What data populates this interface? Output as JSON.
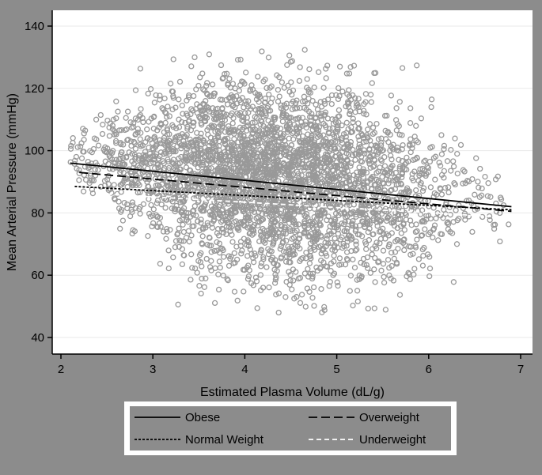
{
  "chart_data": {
    "type": "scatter",
    "xlabel": "Estimated Plasma Volume (dL/g)",
    "ylabel": "Mean Arterial Pressure (mmHg)",
    "xlim": [
      2,
      7
    ],
    "ylim": [
      40,
      140
    ],
    "x_ticks": [
      2,
      3,
      4,
      5,
      6,
      7
    ],
    "y_ticks": [
      40,
      60,
      80,
      100,
      120,
      140
    ],
    "grid": true,
    "legend_position": "bottom",
    "scatter": {
      "color": "#999999",
      "marker": "hollow-circle",
      "center_x": 4.3,
      "center_y": 92,
      "x_range": [
        2.1,
        6.9
      ],
      "y_range": [
        48,
        133
      ]
    },
    "series": [
      {
        "name": "Obese",
        "style": "solid",
        "color": "#000000",
        "x": [
          2.1,
          6.9
        ],
        "y": [
          96,
          82
        ]
      },
      {
        "name": "Overweight",
        "style": "long-dash",
        "color": "#000000",
        "x": [
          2.2,
          6.9
        ],
        "y": [
          93,
          80.5
        ]
      },
      {
        "name": "Normal Weight",
        "style": "short-dash",
        "color": "#000000",
        "x": [
          2.15,
          6.9
        ],
        "y": [
          88.5,
          81
        ]
      },
      {
        "name": "Underweight",
        "style": "dash",
        "color": "#ffffff",
        "x": [
          2.5,
          6.9
        ],
        "y": [
          86,
          78.5
        ]
      }
    ]
  }
}
